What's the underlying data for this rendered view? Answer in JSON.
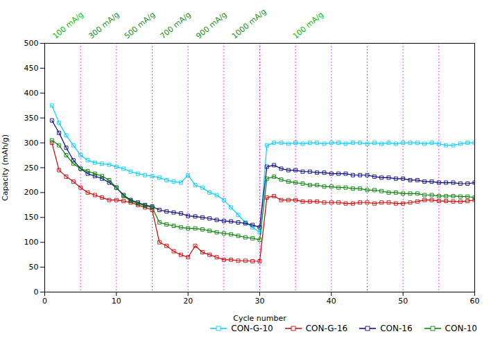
{
  "chart_data": {
    "type": "line",
    "xlabel": "Cycle number",
    "ylabel": "Capacity (mAh/g)",
    "xlim": [
      0,
      60
    ],
    "ylim": [
      0,
      500
    ],
    "xticks": [
      0,
      10,
      20,
      30,
      40,
      50,
      60
    ],
    "yticks": [
      0,
      50,
      100,
      150,
      200,
      250,
      300,
      350,
      400,
      450,
      500
    ],
    "grid": false,
    "legend": "lower right",
    "marker": "square",
    "x": [
      1,
      2,
      3,
      4,
      5,
      6,
      7,
      8,
      9,
      10,
      11,
      12,
      13,
      14,
      15,
      16,
      17,
      18,
      19,
      20,
      21,
      22,
      23,
      24,
      25,
      26,
      27,
      28,
      29,
      30,
      31,
      32,
      33,
      34,
      35,
      36,
      37,
      38,
      39,
      40,
      41,
      42,
      43,
      44,
      45,
      46,
      47,
      48,
      49,
      50,
      51,
      52,
      53,
      54,
      55,
      56,
      57,
      58,
      59,
      60
    ],
    "series": [
      {
        "name": "CON-G-10",
        "color": "#00CCFF",
        "values": [
          375,
          340,
          315,
          295,
          275,
          265,
          260,
          258,
          256,
          252,
          248,
          242,
          238,
          235,
          233,
          230,
          225,
          222,
          220,
          235,
          215,
          210,
          200,
          195,
          185,
          170,
          155,
          140,
          130,
          120,
          295,
          300,
          300,
          298,
          300,
          298,
          300,
          300,
          298,
          300,
          300,
          298,
          300,
          300,
          298,
          300,
          298,
          300,
          298,
          300,
          300,
          300,
          298,
          300,
          298,
          295,
          295,
          298,
          300,
          300
        ]
      },
      {
        "name": "CON-G-16",
        "color": "#CC0000",
        "values": [
          300,
          245,
          232,
          222,
          210,
          200,
          195,
          190,
          185,
          185,
          183,
          180,
          175,
          170,
          165,
          100,
          93,
          82,
          75,
          70,
          93,
          80,
          75,
          70,
          65,
          65,
          63,
          63,
          62,
          62,
          190,
          193,
          185,
          185,
          185,
          182,
          182,
          182,
          180,
          180,
          180,
          178,
          178,
          180,
          180,
          178,
          180,
          180,
          178,
          178,
          180,
          182,
          185,
          185,
          183,
          183,
          182,
          182,
          183,
          185
        ]
      },
      {
        "name": "CON-16",
        "color": "#000080",
        "values": [
          345,
          320,
          290,
          265,
          248,
          238,
          233,
          228,
          220,
          210,
          195,
          185,
          180,
          175,
          172,
          165,
          162,
          160,
          158,
          153,
          152,
          150,
          148,
          145,
          143,
          142,
          140,
          138,
          135,
          130,
          252,
          255,
          248,
          245,
          245,
          242,
          242,
          240,
          240,
          238,
          238,
          238,
          235,
          235,
          235,
          232,
          230,
          230,
          228,
          228,
          225,
          225,
          222,
          222,
          220,
          220,
          220,
          218,
          218,
          220
        ]
      },
      {
        "name": "CON-10",
        "color": "#008000",
        "values": [
          305,
          295,
          275,
          258,
          248,
          243,
          238,
          233,
          225,
          210,
          193,
          183,
          178,
          173,
          170,
          140,
          136,
          133,
          130,
          128,
          128,
          126,
          123,
          120,
          118,
          116,
          113,
          110,
          108,
          105,
          228,
          232,
          226,
          222,
          220,
          218,
          215,
          215,
          212,
          212,
          210,
          210,
          208,
          208,
          205,
          205,
          203,
          200,
          200,
          198,
          198,
          198,
          195,
          195,
          193,
          193,
          193,
          192,
          192,
          190
        ]
      }
    ],
    "vlines": {
      "x": [
        5,
        10,
        15,
        20,
        25,
        30,
        35,
        40,
        45,
        50,
        55,
        60
      ],
      "color": "magenta",
      "line_style": "dotted"
    },
    "annotations": [
      {
        "text": "100 mA/g",
        "x": 1.5,
        "color": "#00BB00"
      },
      {
        "text": "300 mA/g",
        "x": 6.5,
        "color": "#228B22"
      },
      {
        "text": "500 mA/g",
        "x": 11.5,
        "color": "#228B22"
      },
      {
        "text": "700 mA/g",
        "x": 16.5,
        "color": "#228B22"
      },
      {
        "text": "900 mA/g",
        "x": 21.5,
        "color": "#228B22"
      },
      {
        "text": "1000 mA/g",
        "x": 26.5,
        "color": "#228B22"
      },
      {
        "text": "100 mA/g",
        "x": 35.0,
        "color": "#00BB00"
      }
    ]
  }
}
